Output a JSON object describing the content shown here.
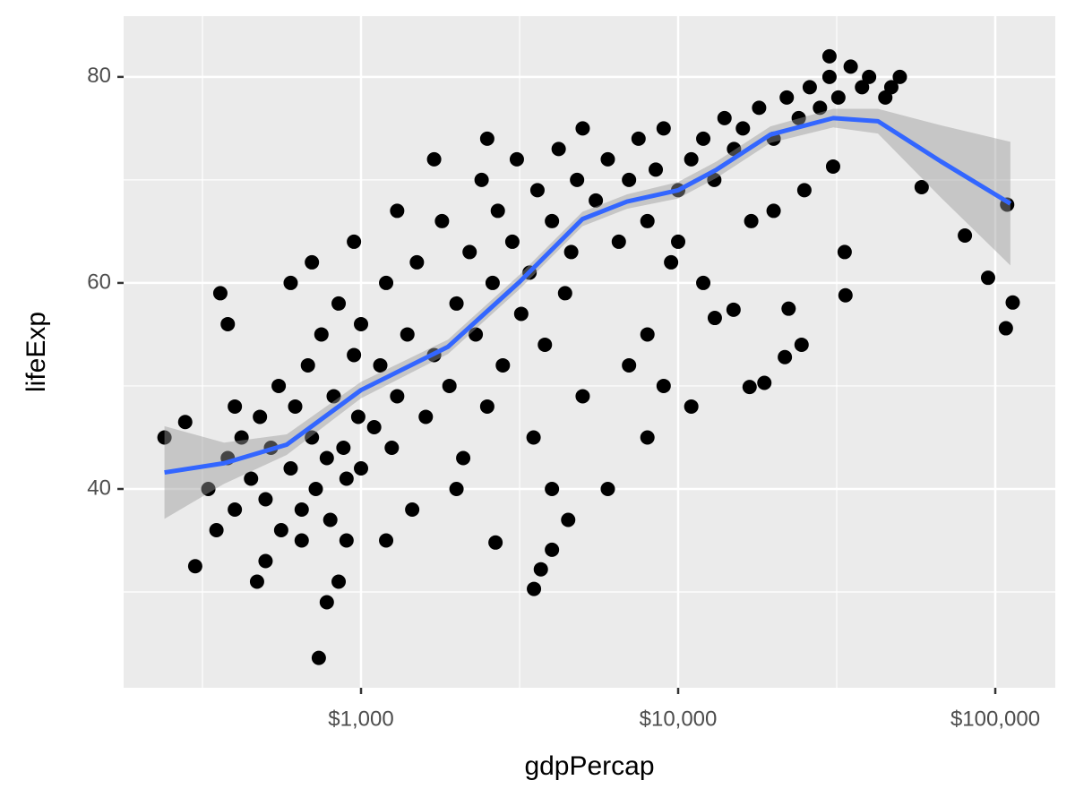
{
  "chart_data": {
    "type": "scatter",
    "x_label": "gdpPercap",
    "y_label": "lifeExp",
    "log_x": true,
    "grid": true,
    "xlim": [
      178.4,
      154600
    ],
    "ylim": [
      20.7,
      85.9
    ],
    "xticks": [
      {
        "value": 1000,
        "label": "$1,000"
      },
      {
        "value": 10000,
        "label": "$10,000"
      },
      {
        "value": 100000,
        "label": "$100,000"
      }
    ],
    "yticks": [
      40,
      60,
      80
    ],
    "x_minor_breaks": [
      316.23,
      3162.28,
      31622.8
    ],
    "y_minor_breaks": [
      30,
      50,
      70
    ],
    "point_color": "#000000",
    "points": {
      "x": [
        240,
        279,
        300,
        736,
        58600,
        80200,
        94900,
        108000,
        113500,
        109000,
        33500,
        33700,
        30800,
        3510,
        3690,
        4000,
        2655,
        16800,
        18700,
        24500,
        21700,
        22300,
        14950,
        13050,
        330,
        350,
        380,
        400,
        420,
        450,
        480,
        500,
        520,
        550,
        560,
        600,
        620,
        650,
        680,
        700,
        720,
        750,
        780,
        800,
        820,
        850,
        880,
        900,
        950,
        980,
        360,
        380,
        400,
        470,
        500,
        600,
        650,
        700,
        780,
        850,
        900,
        950,
        1000,
        1000,
        1100,
        1150,
        1200,
        1250,
        1300,
        1400,
        1450,
        1500,
        1600,
        1700,
        1800,
        1900,
        2000,
        2100,
        2200,
        2300,
        2400,
        2500,
        2600,
        2700,
        2800,
        3000,
        3100,
        3200,
        3400,
        3600,
        3800,
        4000,
        4200,
        4400,
        4600,
        4800,
        5000,
        1200,
        1300,
        1700,
        2000,
        2500,
        3500,
        4000,
        4500,
        5000,
        5500,
        6000,
        6500,
        7000,
        7500,
        8000,
        8500,
        9000,
        9500,
        10000,
        11000,
        12000,
        13000,
        14000,
        15000,
        16000,
        18000,
        20000,
        22000,
        24000,
        26000,
        28000,
        30000,
        32000,
        35000,
        38000,
        40000,
        45000,
        50000,
        7000,
        8000,
        9000,
        10000,
        12000,
        6000,
        8000,
        11000,
        20000,
        25000,
        17000,
        30000,
        47000
      ],
      "y": [
        45.0,
        46.5,
        32.5,
        23.6,
        69.3,
        64.6,
        60.5,
        55.6,
        58.1,
        67.6,
        63.0,
        58.8,
        71.3,
        30.3,
        32.2,
        34.1,
        34.8,
        49.9,
        50.3,
        54.0,
        52.8,
        57.5,
        57.4,
        56.6,
        40,
        36,
        43,
        38,
        45,
        41,
        47,
        39,
        44,
        50,
        36,
        42,
        48,
        38,
        52,
        45,
        40,
        55,
        43,
        37,
        49,
        58,
        44,
        41,
        53,
        47,
        59,
        56,
        48,
        31,
        33,
        60,
        35,
        62,
        29,
        31,
        35,
        64,
        42,
        56,
        46,
        52,
        60,
        44,
        49,
        55,
        38,
        62,
        47,
        53,
        66,
        50,
        58,
        43,
        63,
        55,
        70,
        48,
        60,
        67,
        52,
        64,
        72,
        57,
        61,
        69,
        54,
        66,
        73,
        59,
        63,
        70,
        49,
        35,
        67,
        72,
        40,
        74,
        45,
        40,
        37,
        75,
        68,
        72,
        64,
        70,
        74,
        66,
        71,
        75,
        62,
        69,
        72,
        74,
        70,
        76,
        73,
        75,
        77,
        74,
        78,
        76,
        79,
        77,
        80,
        78,
        81,
        79,
        80,
        78,
        80,
        52,
        45,
        50,
        64,
        60,
        40,
        55,
        48,
        67,
        69,
        66,
        82,
        79
      ]
    },
    "smooth": {
      "color": "#3366ff",
      "band_color": "#999999",
      "x": [
        240,
        370,
        583,
        1000,
        1880,
        3162,
        4990,
        6900,
        10000,
        13220,
        19540,
        30830,
        42650,
        67300,
        111600
      ],
      "y": [
        41.6,
        42.5,
        44.3,
        49.6,
        53.8,
        60.1,
        66.2,
        67.9,
        69.0,
        71.0,
        74.4,
        76.0,
        75.7,
        71.8,
        67.7
      ],
      "lower": [
        37.1,
        40.5,
        43.3,
        48.8,
        53.1,
        59.4,
        65.5,
        67.2,
        68.2,
        70.2,
        73.6,
        75.1,
        74.5,
        68.3,
        61.7
      ],
      "upper": [
        46.1,
        44.5,
        45.3,
        50.4,
        54.5,
        60.8,
        66.9,
        68.6,
        69.8,
        71.8,
        75.2,
        76.9,
        76.9,
        75.3,
        73.7
      ]
    }
  }
}
